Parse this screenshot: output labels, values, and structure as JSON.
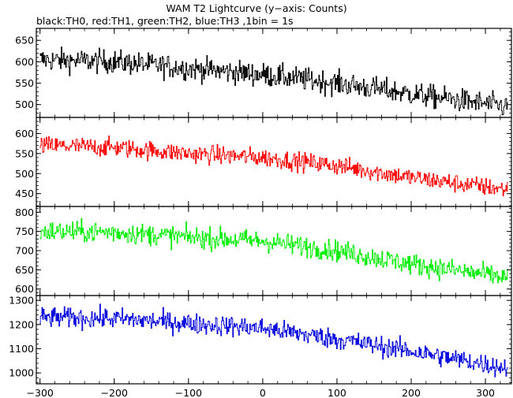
{
  "chart_data": {
    "type": "line",
    "title": "WAM T2 Lightcurve (y−axis: Counts)",
    "subtitle": "black:TH0, red:TH1, green:TH2, blue:TH3 ,1bin = 1s",
    "x_range": [
      -305,
      335
    ],
    "x_ticks": [
      -300,
      -200,
      -100,
      0,
      100,
      200,
      300
    ],
    "grid": false,
    "panels": [
      {
        "name": "TH0",
        "color": "#000000",
        "y_range": [
          470,
          678
        ],
        "y_ticks": [
          500,
          550,
          600,
          650
        ],
        "trend": [
          [
            -300,
            605
          ],
          [
            -200,
            600
          ],
          [
            -100,
            585
          ],
          [
            0,
            570
          ],
          [
            100,
            550
          ],
          [
            200,
            525
          ],
          [
            330,
            495
          ]
        ],
        "noise": 26
      },
      {
        "name": "TH1",
        "color": "#ff0000",
        "y_range": [
          418,
          640
        ],
        "y_ticks": [
          450,
          500,
          550,
          600
        ],
        "trend": [
          [
            -300,
            570
          ],
          [
            -200,
            565
          ],
          [
            -100,
            550
          ],
          [
            0,
            540
          ],
          [
            100,
            520
          ],
          [
            200,
            490
          ],
          [
            330,
            460
          ]
        ],
        "noise": 22
      },
      {
        "name": "TH2",
        "color": "#00ee00",
        "y_range": [
          583,
          815
        ],
        "y_ticks": [
          600,
          650,
          700,
          750,
          800
        ],
        "trend": [
          [
            -300,
            750
          ],
          [
            -200,
            748
          ],
          [
            -100,
            735
          ],
          [
            0,
            725
          ],
          [
            100,
            700
          ],
          [
            200,
            665
          ],
          [
            330,
            630
          ]
        ],
        "noise": 26
      },
      {
        "name": "TH3",
        "color": "#0000dd",
        "y_range": [
          955,
          1320
        ],
        "y_ticks": [
          1000,
          1100,
          1200,
          1300
        ],
        "trend": [
          [
            -300,
            1230
          ],
          [
            -200,
            1225
          ],
          [
            -100,
            1205
          ],
          [
            0,
            1185
          ],
          [
            100,
            1140
          ],
          [
            200,
            1090
          ],
          [
            330,
            1020
          ]
        ],
        "noise": 40
      }
    ]
  }
}
